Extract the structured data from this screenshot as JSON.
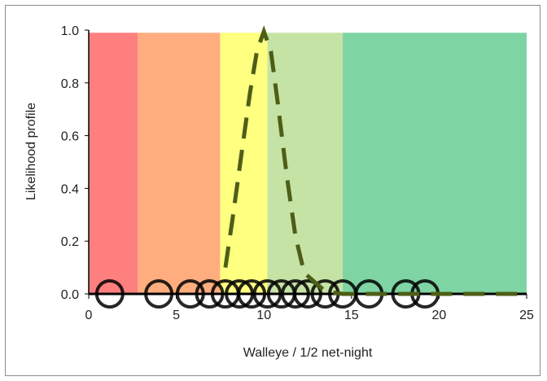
{
  "chart_data": {
    "type": "line",
    "title": "",
    "xlabel": "Walleye / 1/2 net-night",
    "ylabel": "Likelihood profile",
    "xlim": [
      0,
      25
    ],
    "ylim": [
      0,
      1.0
    ],
    "x_ticks": [
      "0",
      "5",
      "10",
      "15",
      "20",
      "25"
    ],
    "y_ticks": [
      "0.0",
      "0.2",
      "0.4",
      "0.6",
      "0.8",
      "1.0"
    ],
    "grid": false,
    "legend": "none",
    "bands": [
      {
        "from": 0,
        "to": 2.8,
        "color": "#ff7f7f"
      },
      {
        "from": 2.8,
        "to": 7.5,
        "color": "#ffad7f"
      },
      {
        "from": 7.5,
        "to": 10.2,
        "color": "#ffff80"
      },
      {
        "from": 10.2,
        "to": 14.5,
        "color": "#c6e3a6"
      },
      {
        "from": 14.5,
        "to": 25,
        "color": "#7fd4a4"
      }
    ],
    "band_top": 0.99,
    "series": [
      {
        "style": "dashed",
        "color": "#4d5e16",
        "x": [
          7.8,
          8.2,
          8.7,
          9.2,
          9.6,
          10.0,
          10.4,
          10.8,
          11.3,
          11.8,
          12.3,
          13.5,
          14.5,
          16,
          20,
          25
        ],
        "y": [
          0.1,
          0.28,
          0.52,
          0.76,
          0.92,
          0.995,
          0.92,
          0.72,
          0.45,
          0.22,
          0.08,
          0.01,
          0.0,
          0.0,
          0.0,
          0.0
        ]
      }
    ],
    "observations": {
      "x": [
        1.2,
        4.0,
        5.8,
        6.9,
        7.8,
        8.6,
        9.3,
        10.2,
        11.0,
        11.8,
        12.5,
        13.5,
        14.5,
        16.0,
        18.1,
        19.2
      ],
      "y": [
        0,
        0,
        0,
        0,
        0,
        0,
        0,
        0,
        0,
        0,
        0,
        0,
        0,
        0,
        0,
        0
      ]
    }
  }
}
